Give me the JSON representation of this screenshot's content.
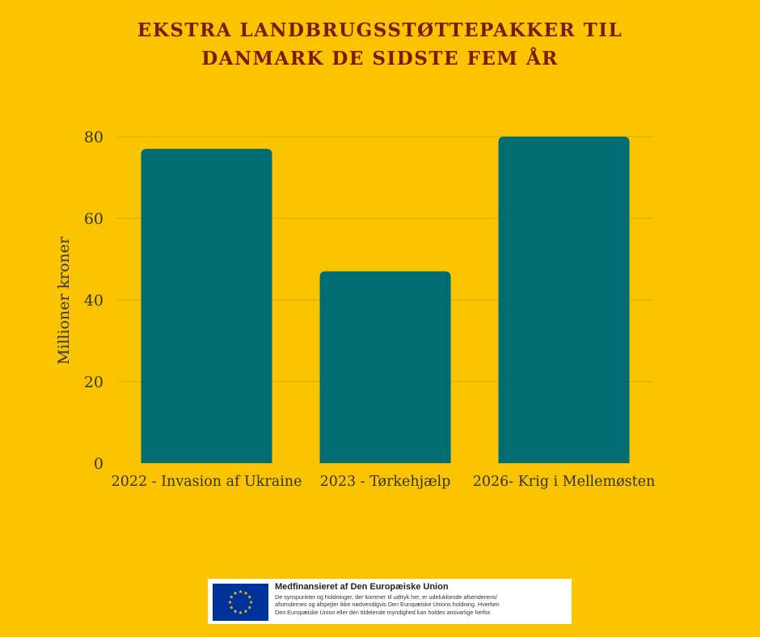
{
  "title_lines": [
    "EKSTRA LANDBRUGSSTØTTEPAKKER TIL",
    "DANMARK DE SIDSTE FEM ÅR"
  ],
  "chart_data": {
    "type": "bar",
    "categories": [
      "2022 - Invasion af Ukraine",
      "2023 - Tørkehjælp",
      "2026- Krig i Mellemøsten"
    ],
    "values": [
      77,
      47,
      80
    ],
    "ylabel": "Millioner kroner",
    "xlabel": "",
    "ylim": [
      0,
      80
    ],
    "yticks": [
      0,
      20,
      40,
      60,
      80
    ],
    "grid": true,
    "bar_color": "#016d72",
    "grid_color": "#d9a800",
    "text_color": "#333333"
  },
  "footer": {
    "heading": "Medfinansieret af Den Europæiske Union",
    "lines": [
      "De synspunkter og holdninger, der kommer til udtryk her, er udelukkende afsenderens/",
      "afsendernes og afspejler ikke nødvendigvis Den Europæiske Unions holdning. Hverken",
      "Den Europæiske Union eller den tildelende myndighed kan holdes ansvarlige herfor."
    ],
    "flag_icon": "eu-flag-icon",
    "flag_color": "#003399",
    "star_color": "#ffcc00"
  },
  "background_color": "#fbc400",
  "title_color": "#7a1b12"
}
